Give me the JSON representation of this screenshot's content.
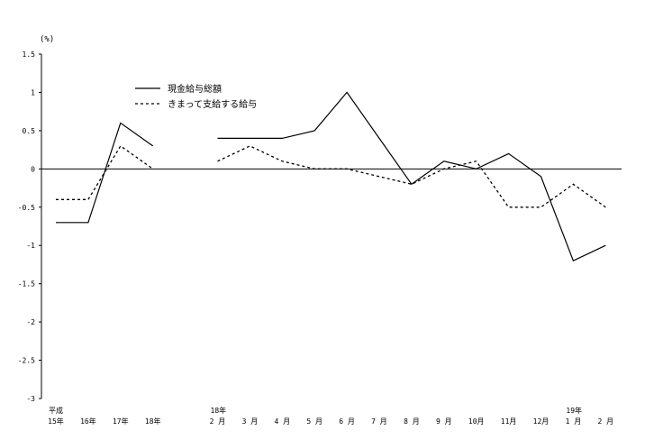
{
  "chart_data": {
    "type": "line",
    "ylabel": "(%)",
    "ylim": [
      -3,
      1.5
    ],
    "yticks": [
      "1.5",
      "1",
      "0.5",
      "0",
      "-0.5",
      "-1",
      "-1.5",
      "-2",
      "-2.5",
      "-3"
    ],
    "categories": [
      {
        "top": "平成",
        "bottom": "15年"
      },
      {
        "top": "",
        "bottom": "16年"
      },
      {
        "top": "",
        "bottom": "17年"
      },
      {
        "top": "",
        "bottom": "18年"
      },
      {
        "top": "",
        "bottom": ""
      },
      {
        "top": "18年",
        "bottom": "2 月"
      },
      {
        "top": "",
        "bottom": "3 月"
      },
      {
        "top": "",
        "bottom": "4 月"
      },
      {
        "top": "",
        "bottom": "5 月"
      },
      {
        "top": "",
        "bottom": "6 月"
      },
      {
        "top": "",
        "bottom": "7 月"
      },
      {
        "top": "",
        "bottom": "8 月"
      },
      {
        "top": "",
        "bottom": "9 月"
      },
      {
        "top": "",
        "bottom": "10月"
      },
      {
        "top": "",
        "bottom": "11月"
      },
      {
        "top": "",
        "bottom": "12月"
      },
      {
        "top": "19年",
        "bottom": "1 月"
      },
      {
        "top": "",
        "bottom": "2 月"
      }
    ],
    "series": [
      {
        "name": "現金給与総額",
        "style": "solid",
        "color": "#000000",
        "values": [
          -0.7,
          -0.7,
          0.6,
          0.3,
          null,
          0.4,
          0.4,
          0.4,
          0.5,
          1.0,
          0.4,
          -0.2,
          0.1,
          0.0,
          0.2,
          -0.1,
          -1.2,
          -1.0
        ]
      },
      {
        "name": "きまって支給する給与",
        "style": "dashed",
        "color": "#000000",
        "values": [
          -0.4,
          -0.4,
          0.3,
          0.0,
          null,
          0.1,
          0.3,
          0.1,
          0.0,
          0.0,
          -0.1,
          -0.2,
          0.0,
          0.1,
          -0.5,
          -0.5,
          -0.2,
          -0.5
        ]
      }
    ],
    "legend": "upper-center",
    "grid": false
  }
}
